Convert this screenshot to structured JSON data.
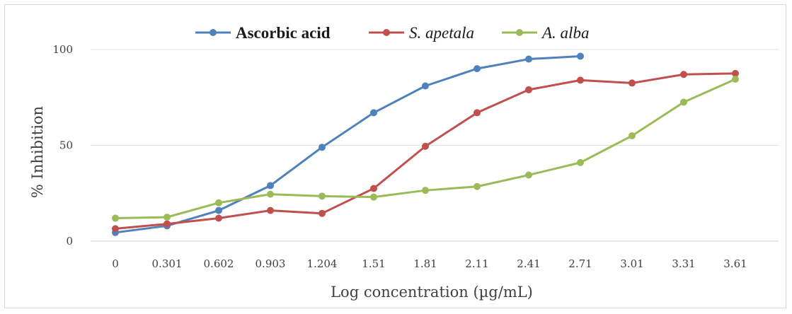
{
  "chart_data": {
    "type": "line",
    "xlabel": "Log concentration (µg/mL)",
    "ylabel": "% Inhibition",
    "categories": [
      "0",
      "0.301",
      "0.602",
      "0.903",
      "1.204",
      "1.51",
      "1.81",
      "2.11",
      "2.41",
      "2.71",
      "3.01",
      "3.31",
      "3.61"
    ],
    "ylim": [
      0,
      100
    ],
    "yticks": [
      0,
      50,
      100
    ],
    "grid": "horizontal",
    "legend_position": "top",
    "series": [
      {
        "name": "Ascorbic acid",
        "color": "#4f81bd",
        "style": "bold",
        "values": [
          4.5,
          8,
          16,
          29,
          49,
          67,
          81,
          90,
          95,
          96.5,
          null,
          null,
          null
        ]
      },
      {
        "name": "S. apetala",
        "color": "#c0504d",
        "style": "italic",
        "values": [
          6.5,
          9,
          12,
          16,
          14.5,
          27.5,
          49.5,
          67,
          79,
          84,
          82.5,
          87,
          87.5
        ]
      },
      {
        "name": "A. alba",
        "color": "#9bbb59",
        "style": "italic",
        "values": [
          12,
          12.5,
          20,
          24.5,
          23.5,
          23,
          26.5,
          28.5,
          34.5,
          41,
          55,
          72.5,
          84.5
        ]
      }
    ]
  }
}
